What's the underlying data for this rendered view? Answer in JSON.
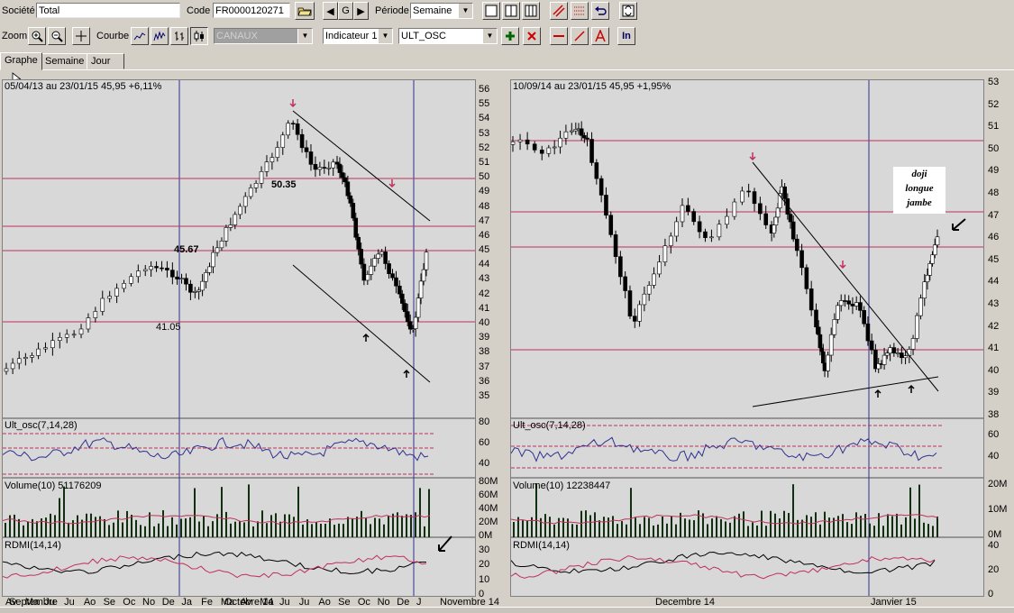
{
  "toolbar": {
    "societe_label": "Société",
    "societe_value": "Total",
    "code_label": "Code",
    "code_value": "FR0000120271",
    "periode_label": "Période",
    "periode_value": "Semaine",
    "zoom_label": "Zoom",
    "courbe_label": "Courbe",
    "canaux_value": "CANAUX",
    "indicateur_value": "Indicateur 1",
    "ult_value": "ULT_OSC",
    "nav_g": "G",
    "in_label": "In"
  },
  "tabs": [
    "Graphe",
    "Semaine",
    "Jour"
  ],
  "left_chart": {
    "header": "05/04/13 au 23/01/15  45,95  +6,11%",
    "price_axis": [
      "56",
      "55",
      "54",
      "53",
      "52",
      "51",
      "50",
      "49",
      "48",
      "47",
      "46",
      "45",
      "44",
      "43",
      "42",
      "41",
      "40",
      "39",
      "38",
      "37",
      "36",
      "35"
    ],
    "annotations": [
      "50.35",
      "45.67",
      "41.05"
    ],
    "osc_label": "Ult_osc(7,14,28)",
    "osc_axis": [
      "80",
      "60",
      "40"
    ],
    "vol_label": "Volume(10) 51176209",
    "vol_axis": [
      "80M",
      "60M",
      "40M",
      "20M",
      "0M"
    ],
    "rdmi_label": "RDMI(14,14)",
    "rdmi_axis": [
      "30",
      "20",
      "10",
      "0"
    ],
    "months": [
      "Av",
      "Ma",
      "Ju",
      "Ju",
      "Ao",
      "Se",
      "Oc",
      "No",
      "De",
      "Ja",
      "Fe",
      "Ma",
      "Av",
      "Ma",
      "Ju",
      "Ju",
      "Ao",
      "Se",
      "Oc",
      "No",
      "De",
      "J"
    ]
  },
  "right_chart": {
    "header": "10/09/14 au 23/01/15  45,95  +1,95%",
    "price_axis": [
      "53",
      "52",
      "51",
      "50",
      "49",
      "48",
      "47",
      "46",
      "45",
      "44",
      "43",
      "42",
      "41",
      "40",
      "39",
      "38"
    ],
    "annotation": [
      "doji",
      "longue",
      "jambe"
    ],
    "osc_label": "Ult_osc(7,14,28)",
    "osc_axis": [
      "60",
      "40"
    ],
    "vol_label": "Volume(10) 12238447",
    "vol_axis": [
      "20M",
      "10M",
      "0M"
    ],
    "rdmi_label": "RDMI(14,14)",
    "rdmi_axis": [
      "40",
      "20",
      "0"
    ],
    "months": [
      "Septembre",
      "Octobre 14",
      "Novembre 14",
      "Decembre 14",
      "Janvier 15"
    ]
  },
  "colors": {
    "price_line": "#c0305a",
    "grid_blue": "#303090",
    "osc_blue": "#303090",
    "vol_green": "#103010",
    "arrow_red": "#c0305a"
  }
}
